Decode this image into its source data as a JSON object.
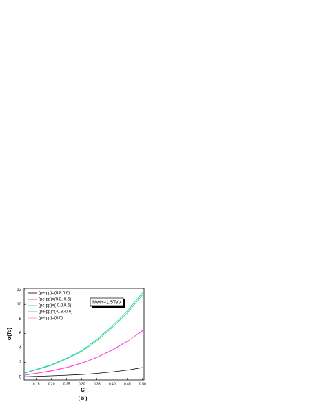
{
  "chart_data": {
    "type": "line",
    "x_label": "C",
    "y_label": "σ(fb)",
    "caption": "( b )",
    "annotation": "MwH=1.5TeV",
    "x": [
      0.11,
      0.15,
      0.2,
      0.25,
      0.3,
      0.35,
      0.4,
      0.45,
      0.5
    ],
    "series": [
      {
        "name": "(pe-pp)=(0.8,0.6)",
        "color": "#000000",
        "values": [
          0.05,
          0.1,
          0.17,
          0.25,
          0.35,
          0.5,
          0.7,
          0.95,
          1.3
        ]
      },
      {
        "name": "(pe-pp)=(0.8,-0.6)",
        "color": "#ff00ff",
        "values": [
          0.25,
          0.5,
          0.85,
          1.3,
          1.9,
          2.7,
          3.7,
          4.9,
          6.4
        ]
      },
      {
        "name": "(pe-pp)=(-0.8,0.6)",
        "color": "#33cc66",
        "values": [
          0.5,
          1.0,
          1.6,
          2.5,
          3.5,
          5.0,
          6.8,
          8.8,
          11.3
        ]
      },
      {
        "name": "(pe-pp)=(-0.8,-0.6)",
        "color": "#00cccc",
        "values": [
          0.55,
          1.05,
          1.7,
          2.6,
          3.65,
          5.2,
          7.0,
          9.1,
          11.6
        ]
      },
      {
        "name": "(pe-pp)=(0,0)",
        "color": "#ff88cc",
        "values": [
          0.3,
          0.55,
          0.9,
          1.35,
          1.95,
          2.75,
          3.75,
          4.95,
          6.3
        ]
      }
    ],
    "xlim": [
      0.11,
      0.505
    ],
    "xticks": [
      0.15,
      {
        "value": 0.2,
        "label": "0.20"
      },
      0.25,
      {
        "value": 0.3,
        "label": "0.30"
      },
      0.35,
      {
        "value": 0.4,
        "label": "0.40"
      },
      0.45,
      {
        "value": 0.5,
        "label": "0.50"
      }
    ],
    "ylim": [
      -0.4,
      12.2
    ],
    "yticks": [
      0,
      2,
      4,
      6,
      8,
      10,
      12
    ]
  }
}
